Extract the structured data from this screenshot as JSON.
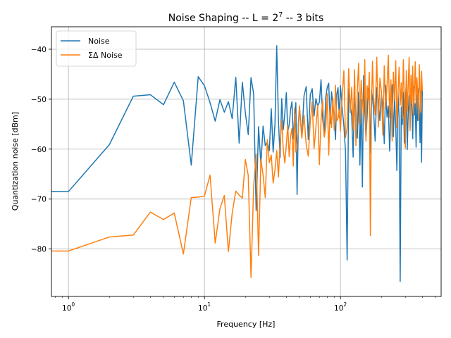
{
  "chart_data": {
    "type": "line",
    "title_main": "Noise Shaping -- L = 2",
    "title_exp": "7",
    "title_rest": " -- 3 bits",
    "xlabel": "Frequency [Hz]",
    "ylabel": "Quantization noise [dBm]",
    "x_scale": "log",
    "xlim": [
      0.75,
      550
    ],
    "ylim": [
      -89.5,
      -35.5
    ],
    "grid": true,
    "legend_position": "top-left",
    "x_ticks": [
      {
        "value": 1,
        "base": "10",
        "exp": "0"
      },
      {
        "value": 10,
        "base": "10",
        "exp": "1"
      },
      {
        "value": 100,
        "base": "10",
        "exp": "2"
      }
    ],
    "y_ticks": [
      {
        "value": -80,
        "label": "−80"
      },
      {
        "value": -70,
        "label": "−70"
      },
      {
        "value": -60,
        "label": "−60"
      },
      {
        "value": -50,
        "label": "−50"
      },
      {
        "value": -40,
        "label": "−40"
      }
    ],
    "series": [
      {
        "name": "Noise",
        "color": "#1f77b4",
        "x": [
          0.5,
          1,
          2,
          3,
          4,
          5,
          6,
          7,
          8,
          9,
          10,
          11,
          12,
          13,
          14,
          15,
          16,
          17,
          18,
          19,
          20,
          21,
          22,
          23,
          24,
          25,
          26,
          27,
          28,
          29,
          30,
          31,
          32,
          33,
          34,
          35,
          36,
          37,
          38,
          39,
          40,
          41,
          42,
          43,
          44,
          45,
          46,
          47,
          48,
          49,
          50,
          52,
          54,
          56,
          58,
          60,
          62,
          64,
          66,
          68,
          70,
          72,
          74,
          76,
          78,
          80,
          82,
          84,
          86,
          88,
          90,
          92,
          94,
          96,
          98,
          100,
          103,
          106,
          109,
          112,
          115,
          118,
          121,
          124,
          127,
          130,
          133,
          136,
          139,
          142,
          145,
          148,
          151,
          154,
          157,
          160,
          163,
          166,
          169,
          172,
          175,
          180,
          185,
          190,
          195,
          200,
          205,
          210,
          215,
          220,
          225,
          230,
          235,
          240,
          245,
          250,
          255,
          260,
          265,
          270,
          275,
          280,
          285,
          290,
          295,
          300,
          305,
          310,
          315,
          320,
          325,
          330,
          335,
          340,
          345,
          350,
          355,
          360,
          365,
          370,
          375,
          380,
          385,
          390,
          395,
          400
        ],
        "y": [
          -68.5,
          -68.5,
          -59.1,
          -49.4,
          -49.1,
          -51.1,
          -46.6,
          -50.3,
          -63.2,
          -45.5,
          -47.3,
          -50.7,
          -54.4,
          -50.1,
          -52.6,
          -50.5,
          -53.9,
          -45.6,
          -58.8,
          -46.6,
          -52.8,
          -57.1,
          -45.7,
          -48.9,
          -72.3,
          -55.5,
          -63.1,
          -55.4,
          -59.3,
          -58.6,
          -60.3,
          -51.9,
          -60.6,
          -55.1,
          -39.3,
          -54.3,
          -61.7,
          -49.9,
          -56.1,
          -52.8,
          -48.7,
          -56.5,
          -55.1,
          -52.1,
          -50.5,
          -57.9,
          -53.4,
          -50.7,
          -69.1,
          -55.1,
          -51.6,
          -57.6,
          -49.3,
          -47.5,
          -58.1,
          -49.1,
          -47.9,
          -53.4,
          -49.9,
          -51.4,
          -50.6,
          -46.1,
          -53.8,
          -57.4,
          -49.6,
          -47.6,
          -46.8,
          -54.9,
          -48.5,
          -51.2,
          -53.5,
          -58.1,
          -49.1,
          -47.7,
          -53.6,
          -47.3,
          -51.8,
          -55.3,
          -60.6,
          -82.2,
          -47.9,
          -51.2,
          -53.3,
          -61.6,
          -47.2,
          -55.7,
          -57.8,
          -48.6,
          -63.2,
          -50.1,
          -67.6,
          -45.3,
          -52.1,
          -57.7,
          -53.6,
          -47.8,
          -50.1,
          -60.7,
          -48.2,
          -49.6,
          -52.1,
          -58.4,
          -47.7,
          -50.5,
          -54.3,
          -49.1,
          -51.4,
          -58.9,
          -47.2,
          -53.6,
          -51.4,
          -60.4,
          -52.9,
          -47.1,
          -57.5,
          -49.9,
          -55.3,
          -64.3,
          -48.5,
          -53.8,
          -86.5,
          -51.6,
          -55.1,
          -48.6,
          -58.8,
          -50.7,
          -46.3,
          -60.1,
          -52.9,
          -49.3,
          -55.8,
          -48.6,
          -51.4,
          -57.9,
          -47.4,
          -53.2,
          -50.9,
          -59.6,
          -49.1,
          -54.3,
          -47.9,
          -52.4,
          -58.7,
          -50.3,
          -62.6,
          -48.1
        ]
      },
      {
        "name": "ΣΔ Noise",
        "color": "#ff7f0e",
        "x": [
          0.5,
          1,
          2,
          3,
          4,
          5,
          6,
          7,
          8,
          9,
          10,
          11,
          12,
          13,
          14,
          15,
          16,
          17,
          18,
          19,
          20,
          21,
          22,
          23,
          24,
          25,
          26,
          27,
          28,
          29,
          30,
          31,
          32,
          33,
          34,
          35,
          36,
          37,
          38,
          39,
          40,
          41,
          42,
          43,
          44,
          45,
          46,
          47,
          48,
          49,
          50,
          52,
          54,
          56,
          58,
          60,
          62,
          64,
          66,
          68,
          70,
          72,
          74,
          76,
          78,
          80,
          82,
          84,
          86,
          88,
          90,
          92,
          94,
          96,
          98,
          100,
          103,
          106,
          109,
          112,
          115,
          118,
          121,
          124,
          127,
          130,
          133,
          136,
          139,
          142,
          145,
          148,
          151,
          154,
          157,
          160,
          163,
          166,
          169,
          172,
          175,
          180,
          185,
          190,
          195,
          200,
          205,
          210,
          215,
          220,
          225,
          230,
          235,
          240,
          245,
          250,
          255,
          260,
          265,
          270,
          275,
          280,
          285,
          290,
          295,
          300,
          305,
          310,
          315,
          320,
          325,
          330,
          335,
          340,
          345,
          350,
          355,
          360,
          365,
          370,
          375,
          380,
          385,
          390,
          395,
          400
        ],
        "y": [
          -80.4,
          -80.4,
          -77.6,
          -77.2,
          -72.6,
          -74.1,
          -72.8,
          -81.0,
          -69.7,
          -69.6,
          -69.4,
          -65.2,
          -78.8,
          -71.9,
          -69.3,
          -80.5,
          -72.8,
          -68.4,
          -69.2,
          -69.8,
          -62.1,
          -65.3,
          -85.7,
          -67.5,
          -61.0,
          -81.3,
          -62.0,
          -65.2,
          -69.7,
          -58.1,
          -62.7,
          -61.2,
          -66.8,
          -64.2,
          -60.3,
          -65.6,
          -58.7,
          -54.3,
          -60.2,
          -62.8,
          -59.1,
          -55.3,
          -61.5,
          -57.4,
          -55.9,
          -63.4,
          -51.8,
          -60.6,
          -58.3,
          -56.4,
          -51.3,
          -57.8,
          -53.2,
          -59.1,
          -61.4,
          -54.6,
          -50.5,
          -59.9,
          -55.7,
          -51.2,
          -63.1,
          -54.2,
          -50.3,
          -57.6,
          -55.8,
          -48.9,
          -61.2,
          -51.4,
          -55.7,
          -49.8,
          -56.2,
          -47.2,
          -54.3,
          -53.9,
          -52.1,
          -56.4,
          -49.2,
          -44.3,
          -57.7,
          -55.6,
          -43.9,
          -52.7,
          -47.6,
          -56.1,
          -44.1,
          -59.3,
          -48.5,
          -42.8,
          -54.9,
          -46.2,
          -50.3,
          -53.2,
          -42.1,
          -58.4,
          -47.3,
          -50.1,
          -44.6,
          -77.3,
          -52.1,
          -42.4,
          -49.5,
          -53.1,
          -41.6,
          -55.6,
          -45.8,
          -48.4,
          -57.2,
          -43.3,
          -51.9,
          -47.5,
          -41.2,
          -53.7,
          -46.1,
          -58.4,
          -44.6,
          -50.2,
          -42.3,
          -55.7,
          -48.8,
          -43.6,
          -51.2,
          -46.7,
          -53.9,
          -42.1,
          -49.5,
          -59.8,
          -44.3,
          -52.4,
          -47.1,
          -41.6,
          -56.3,
          -45.2,
          -50.8,
          -43.4,
          -53.1,
          -47.9,
          -42.5,
          -51.6,
          -45.7,
          -49.1,
          -54.2,
          -43.1,
          -47.9,
          -52.6,
          -44.4,
          -48.3
        ]
      }
    ]
  }
}
